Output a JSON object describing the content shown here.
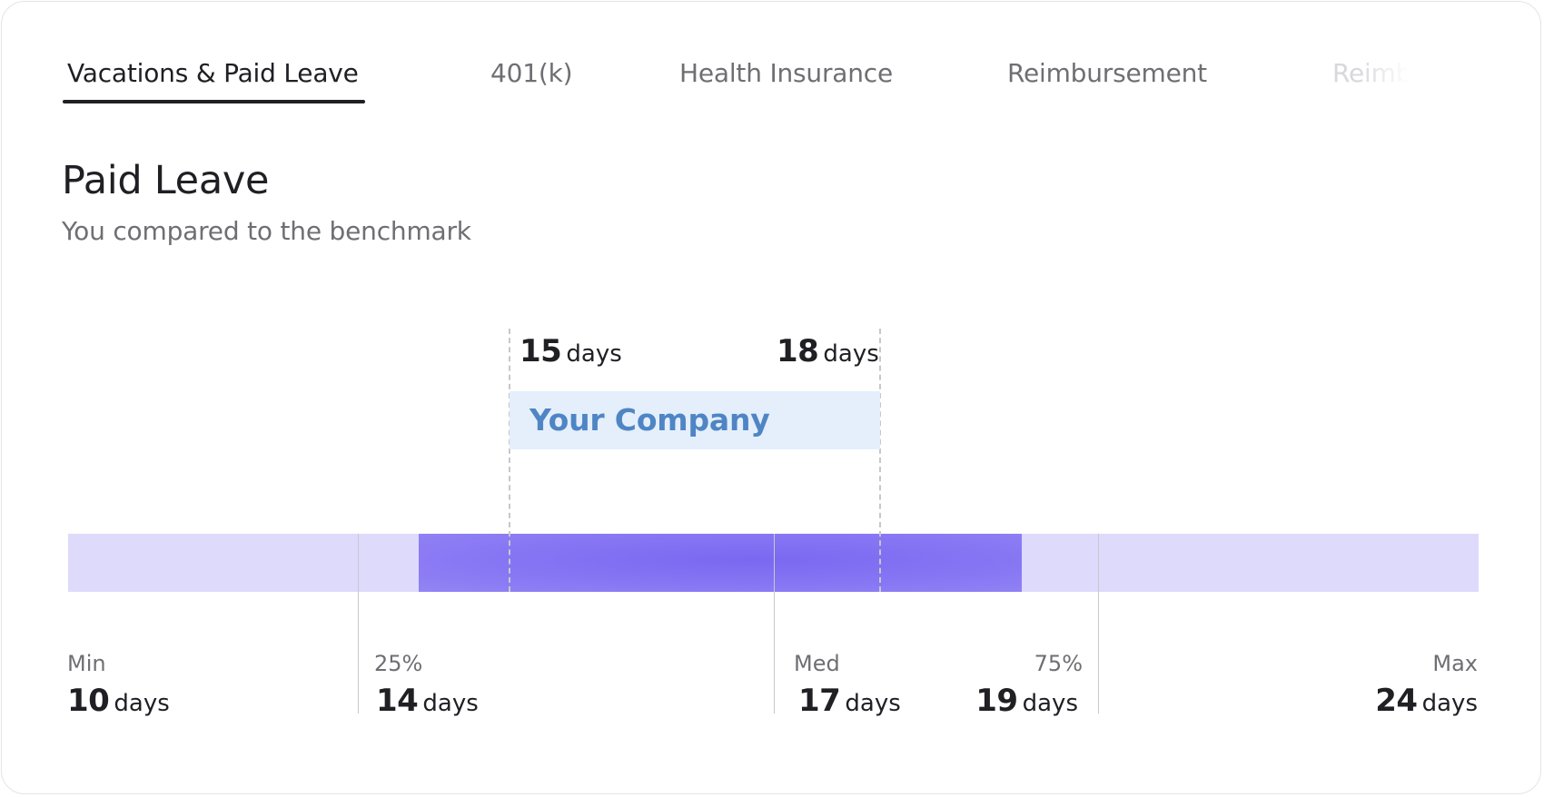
{
  "tabs": [
    {
      "label": "Vacations & Paid Leave",
      "active": true
    },
    {
      "label": "401(k)",
      "active": false
    },
    {
      "label": "Health Insurance",
      "active": false
    },
    {
      "label": "Reimbursement",
      "active": false
    },
    {
      "label": "Reimbursement",
      "active": false
    }
  ],
  "section": {
    "title": "Paid Leave",
    "subtitle": "You compared to the benchmark"
  },
  "company": {
    "label": "Your Company",
    "range_start": "15",
    "range_end": "18",
    "unit": "days"
  },
  "benchmark": {
    "unit": "days",
    "min": {
      "label": "Min",
      "value": "10"
    },
    "p25": {
      "label": "25%",
      "value": "14"
    },
    "median": {
      "label": "Med",
      "value": "17"
    },
    "p75": {
      "label": "75%",
      "value": "19"
    },
    "max": {
      "label": "Max",
      "value": "24"
    }
  },
  "colors": {
    "track": "#dedafb",
    "fill": "#8776f3",
    "company_box": "#e4effb",
    "company_text": "#4f85c4"
  }
}
